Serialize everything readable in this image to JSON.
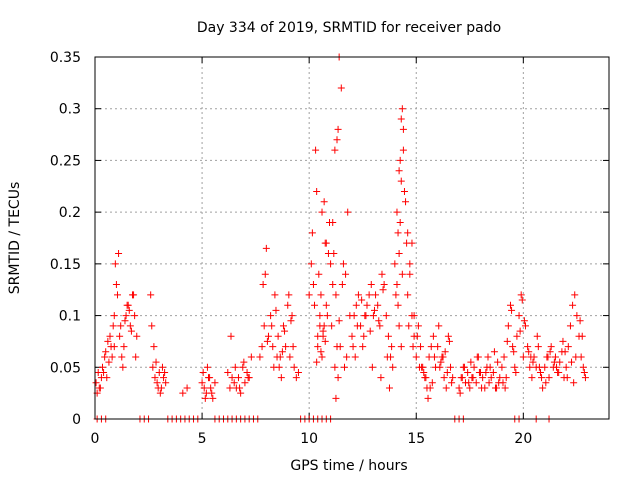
{
  "chart_data": {
    "type": "scatter",
    "title": "Day 334 of 2019, SRMTID for receiver pado",
    "xlabel": "GPS time / hours",
    "ylabel": "SRMTID / TECUs",
    "xlim": [
      0,
      24
    ],
    "ylim": [
      0,
      0.35
    ],
    "x_ticks": [
      0,
      5,
      10,
      15,
      20
    ],
    "x_tick_labels": [
      "0",
      "5",
      "10",
      "15",
      "20"
    ],
    "y_ticks": [
      0,
      0.05,
      0.1,
      0.15,
      0.2,
      0.25,
      0.3,
      0.35
    ],
    "y_tick_labels": [
      "0",
      "0.05",
      "0.1",
      "0.15",
      "0.2",
      "0.25",
      "0.3",
      "0.35"
    ],
    "grid": true,
    "marker": "+",
    "color": "#ff0000",
    "series": [
      {
        "name": "SRMTID",
        "x": [
          0.05,
          0.15,
          0.25,
          0.35,
          0.45,
          0.55,
          0.65,
          0.75,
          0.85,
          0.95,
          1.05,
          1.15,
          1.25,
          1.35,
          1.45,
          1.55,
          1.65,
          1.75,
          1.85,
          1.95,
          0.1,
          0.3,
          0.5,
          0.7,
          0.9,
          1.1,
          1.3,
          1.5,
          1.7,
          1.9,
          0.2,
          0.6,
          1.0,
          1.4,
          1.8,
          0.4,
          0.8,
          1.2,
          1.6,
          0.9,
          2.6,
          2.7,
          2.8,
          2.9,
          3.0,
          3.1,
          3.2,
          3.3,
          2.65,
          2.85,
          3.05,
          3.25,
          2.75,
          2.95,
          3.15,
          4.1,
          4.3,
          5.0,
          5.1,
          5.2,
          5.3,
          5.4,
          5.5,
          5.6,
          5.05,
          5.25,
          5.45,
          5.15,
          5.35,
          6.2,
          6.3,
          6.4,
          6.5,
          6.6,
          6.7,
          6.8,
          6.9,
          7.0,
          7.1,
          7.2,
          7.3,
          6.35,
          6.55,
          6.75,
          6.95,
          7.15,
          7.7,
          7.8,
          7.9,
          8.0,
          8.1,
          8.2,
          8.3,
          8.4,
          8.5,
          8.6,
          8.7,
          8.8,
          8.9,
          9.0,
          9.1,
          9.2,
          9.3,
          9.4,
          9.5,
          7.85,
          8.05,
          8.25,
          8.45,
          8.65,
          8.85,
          9.05,
          9.25,
          7.95,
          8.35,
          8.75,
          9.15,
          8.55,
          10.0,
          10.1,
          10.2,
          10.3,
          10.4,
          10.5,
          10.6,
          10.7,
          10.8,
          10.9,
          11.0,
          11.1,
          11.2,
          11.3,
          11.4,
          11.5,
          11.6,
          11.7,
          11.8,
          11.9,
          10.15,
          10.35,
          10.55,
          10.75,
          10.95,
          11.15,
          11.35,
          11.55,
          11.75,
          10.25,
          10.45,
          10.65,
          10.85,
          11.05,
          11.25,
          11.45,
          11.65,
          10.4,
          10.5,
          10.6,
          10.7,
          10.8,
          11.1,
          11.2,
          11.3,
          11.35,
          11.25,
          10.35,
          10.55,
          10.75,
          10.65,
          11.4,
          12.0,
          12.1,
          12.2,
          12.3,
          12.4,
          12.5,
          12.6,
          12.7,
          12.8,
          12.9,
          13.0,
          13.1,
          13.2,
          13.3,
          13.4,
          13.5,
          13.6,
          13.7,
          13.8,
          13.9,
          12.05,
          12.25,
          12.45,
          12.65,
          12.85,
          13.05,
          13.25,
          13.45,
          13.65,
          13.85,
          12.15,
          12.55,
          12.95,
          13.35,
          13.75,
          14.0,
          14.1,
          14.2,
          14.3,
          14.4,
          14.5,
          14.6,
          14.7,
          14.8,
          14.9,
          15.0,
          15.1,
          15.2,
          15.3,
          15.4,
          15.5,
          15.6,
          15.7,
          15.8,
          15.9,
          14.05,
          14.15,
          14.25,
          14.35,
          14.45,
          14.55,
          14.1,
          14.2,
          14.3,
          14.4,
          14.25,
          14.35,
          14.15,
          14.3,
          14.2,
          14.6,
          14.7,
          14.8,
          14.9,
          15.05,
          15.25,
          15.45,
          15.65,
          15.85,
          14.65,
          14.85,
          15.15,
          15.35,
          15.55,
          15.75,
          16.0,
          16.1,
          16.2,
          16.3,
          16.4,
          16.5,
          16.6,
          16.7,
          16.05,
          16.25,
          16.45,
          16.65,
          16.15,
          16.35,
          16.55,
          17.0,
          17.1,
          17.2,
          17.3,
          17.4,
          17.5,
          17.6,
          17.7,
          17.8,
          17.9,
          18.0,
          18.1,
          18.2,
          18.3,
          18.4,
          18.5,
          18.6,
          18.7,
          18.8,
          18.9,
          17.05,
          17.25,
          17.45,
          17.65,
          17.85,
          18.05,
          18.25,
          18.45,
          18.65,
          18.85,
          17.15,
          17.55,
          17.95,
          18.35,
          18.75,
          19.0,
          19.1,
          19.2,
          19.3,
          19.4,
          19.5,
          19.6,
          19.7,
          19.8,
          19.9,
          20.0,
          20.1,
          20.2,
          20.3,
          20.4,
          20.5,
          20.6,
          20.7,
          20.8,
          20.9,
          19.05,
          19.25,
          19.45,
          19.65,
          19.85,
          20.05,
          20.25,
          20.45,
          20.65,
          20.85,
          19.15,
          19.55,
          19.95,
          20.35,
          20.75,
          21.0,
          21.1,
          21.2,
          21.3,
          21.4,
          21.5,
          21.6,
          21.7,
          21.8,
          21.9,
          22.0,
          22.1,
          22.2,
          22.3,
          22.4,
          22.5,
          22.6,
          22.7,
          22.8,
          22.9,
          21.05,
          21.25,
          21.45,
          21.65,
          21.85,
          22.05,
          22.25,
          22.45,
          22.65,
          22.85,
          21.15,
          21.55,
          21.95,
          22.35,
          22.75,
          0.1,
          0.3,
          0.5,
          2.1,
          2.3,
          2.5,
          3.4,
          3.6,
          3.8,
          4.0,
          4.2,
          4.4,
          4.6,
          4.8,
          5.6,
          5.8,
          6.0,
          6.2,
          6.4,
          6.6,
          6.8,
          7.0,
          7.2,
          7.4,
          7.6,
          9.6,
          9.8,
          10.0,
          10.2,
          10.4,
          10.6,
          10.8,
          11.0,
          16.8,
          17.0,
          17.2,
          19.6,
          19.8,
          20.6,
          21.2
        ],
        "y": [
          0.035,
          0.045,
          0.03,
          0.05,
          0.06,
          0.04,
          0.055,
          0.07,
          0.09,
          0.15,
          0.12,
          0.08,
          0.06,
          0.07,
          0.1,
          0.11,
          0.09,
          0.12,
          0.1,
          0.08,
          0.025,
          0.04,
          0.065,
          0.08,
          0.1,
          0.16,
          0.05,
          0.11,
          0.085,
          0.06,
          0.03,
          0.075,
          0.13,
          0.095,
          0.12,
          0.045,
          0.06,
          0.09,
          0.105,
          0.07,
          0.12,
          0.05,
          0.04,
          0.035,
          0.045,
          0.03,
          0.04,
          0.035,
          0.09,
          0.055,
          0.025,
          0.045,
          0.07,
          0.03,
          0.05,
          0.025,
          0.03,
          0.035,
          0.03,
          0.025,
          0.04,
          0.03,
          0.02,
          0.035,
          0.045,
          0.05,
          0.025,
          0.02,
          0.04,
          0.045,
          0.03,
          0.04,
          0.035,
          0.03,
          0.04,
          0.025,
          0.05,
          0.035,
          0.045,
          0.04,
          0.06,
          0.08,
          0.05,
          0.03,
          0.055,
          0.04,
          0.06,
          0.07,
          0.09,
          0.165,
          0.08,
          0.1,
          0.07,
          0.12,
          0.06,
          0.05,
          0.04,
          0.09,
          0.07,
          0.11,
          0.06,
          0.1,
          0.05,
          0.04,
          0.045,
          0.13,
          0.075,
          0.09,
          0.105,
          0.06,
          0.085,
          0.12,
          0.07,
          0.14,
          0.05,
          0.065,
          0.095,
          0.08,
          0.12,
          0.15,
          0.13,
          0.26,
          0.07,
          0.09,
          0.2,
          0.21,
          0.17,
          0.16,
          0.15,
          0.19,
          0.26,
          0.27,
          0.35,
          0.32,
          0.15,
          0.14,
          0.2,
          0.1,
          0.18,
          0.22,
          0.12,
          0.17,
          0.19,
          0.16,
          0.28,
          0.13,
          0.06,
          0.11,
          0.14,
          0.08,
          0.1,
          0.09,
          0.12,
          0.07,
          0.05,
          0.08,
          0.1,
          0.06,
          0.09,
          0.11,
          0.13,
          0.05,
          0.07,
          0.04,
          0.02,
          0.055,
          0.065,
          0.075,
          0.085,
          0.095,
          0.08,
          0.1,
          0.11,
          0.12,
          0.09,
          0.07,
          0.1,
          0.11,
          0.12,
          0.13,
          0.1,
          0.12,
          0.11,
          0.09,
          0.14,
          0.13,
          0.1,
          0.08,
          0.06,
          0.05,
          0.07,
          0.09,
          0.115,
          0.1,
          0.085,
          0.105,
          0.095,
          0.125,
          0.06,
          0.07,
          0.06,
          0.08,
          0.05,
          0.04,
          0.03,
          0.15,
          0.2,
          0.24,
          0.29,
          0.26,
          0.21,
          0.18,
          0.14,
          0.1,
          0.08,
          0.06,
          0.09,
          0.07,
          0.05,
          0.04,
          0.03,
          0.06,
          0.07,
          0.08,
          0.05,
          0.12,
          0.18,
          0.25,
          0.3,
          0.22,
          0.17,
          0.13,
          0.16,
          0.23,
          0.28,
          0.19,
          0.14,
          0.11,
          0.07,
          0.09,
          0.12,
          0.15,
          0.17,
          0.1,
          0.08,
          0.05,
          0.04,
          0.03,
          0.06,
          0.09,
          0.07,
          0.05,
          0.045,
          0.02,
          0.035,
          0.07,
          0.05,
          0.06,
          0.04,
          0.03,
          0.08,
          0.05,
          0.04,
          0.09,
          0.06,
          0.045,
          0.035,
          0.055,
          0.065,
          0.075,
          0.03,
          0.04,
          0.05,
          0.035,
          0.045,
          0.03,
          0.04,
          0.05,
          0.035,
          0.06,
          0.045,
          0.04,
          0.03,
          0.05,
          0.035,
          0.04,
          0.045,
          0.03,
          0.055,
          0.04,
          0.025,
          0.05,
          0.035,
          0.04,
          0.06,
          0.03,
          0.045,
          0.05,
          0.065,
          0.035,
          0.04,
          0.055,
          0.045,
          0.06,
          0.03,
          0.05,
          0.06,
          0.04,
          0.09,
          0.11,
          0.07,
          0.05,
          0.08,
          0.1,
          0.12,
          0.06,
          0.09,
          0.07,
          0.05,
          0.04,
          0.06,
          0.05,
          0.07,
          0.045,
          0.03,
          0.035,
          0.075,
          0.105,
          0.045,
          0.085,
          0.095,
          0.065,
          0.055,
          0.08,
          0.04,
          0.03,
          0.065,
          0.115,
          0.06,
          0.05,
          0.05,
          0.06,
          0.04,
          0.07,
          0.05,
          0.06,
          0.045,
          0.055,
          0.065,
          0.04,
          0.05,
          0.07,
          0.09,
          0.11,
          0.12,
          0.1,
          0.08,
          0.06,
          0.05,
          0.04,
          0.035,
          0.065,
          0.055,
          0.045,
          0.075,
          0.04,
          0.055,
          0.06,
          0.095,
          0.045,
          0.06,
          0.05,
          0.065,
          0.035,
          0.08,
          0,
          0,
          0,
          0,
          0,
          0,
          0,
          0,
          0,
          0,
          0,
          0,
          0,
          0,
          0,
          0,
          0,
          0,
          0,
          0,
          0,
          0,
          0,
          0,
          0,
          0,
          0,
          0,
          0,
          0,
          0,
          0,
          0,
          0,
          0,
          0,
          0,
          0,
          0,
          0
        ]
      }
    ]
  }
}
